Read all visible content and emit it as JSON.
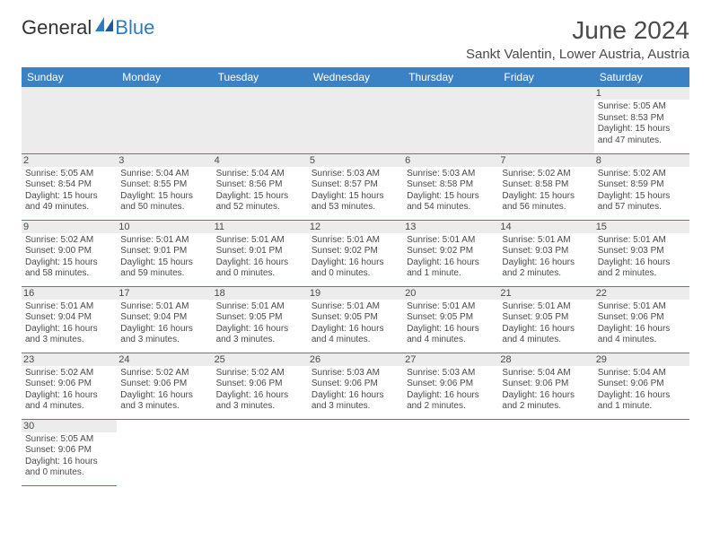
{
  "colors": {
    "header_bg": "#3b82c4",
    "header_text": "#ffffff",
    "daynum_bg": "#ececec",
    "body_text": "#4a4a4a",
    "divider": "#3b82c4",
    "logo_blue": "#2e7cc0"
  },
  "typography": {
    "title_fontsize": 28,
    "location_fontsize": 15,
    "dayheader_fontsize": 12,
    "cell_fontsize": 10,
    "daynum_fontsize": 11
  },
  "logo": {
    "part1": "General",
    "part2": "Blue"
  },
  "title": "June 2024",
  "location": "Sankt Valentin, Lower Austria, Austria",
  "day_headers": [
    "Sunday",
    "Monday",
    "Tuesday",
    "Wednesday",
    "Thursday",
    "Friday",
    "Saturday"
  ],
  "weeks": [
    [
      null,
      null,
      null,
      null,
      null,
      null,
      {
        "num": "1",
        "sunrise": "Sunrise: 5:05 AM",
        "sunset": "Sunset: 8:53 PM",
        "daylight1": "Daylight: 15 hours",
        "daylight2": "and 47 minutes."
      }
    ],
    [
      {
        "num": "2",
        "sunrise": "Sunrise: 5:05 AM",
        "sunset": "Sunset: 8:54 PM",
        "daylight1": "Daylight: 15 hours",
        "daylight2": "and 49 minutes."
      },
      {
        "num": "3",
        "sunrise": "Sunrise: 5:04 AM",
        "sunset": "Sunset: 8:55 PM",
        "daylight1": "Daylight: 15 hours",
        "daylight2": "and 50 minutes."
      },
      {
        "num": "4",
        "sunrise": "Sunrise: 5:04 AM",
        "sunset": "Sunset: 8:56 PM",
        "daylight1": "Daylight: 15 hours",
        "daylight2": "and 52 minutes."
      },
      {
        "num": "5",
        "sunrise": "Sunrise: 5:03 AM",
        "sunset": "Sunset: 8:57 PM",
        "daylight1": "Daylight: 15 hours",
        "daylight2": "and 53 minutes."
      },
      {
        "num": "6",
        "sunrise": "Sunrise: 5:03 AM",
        "sunset": "Sunset: 8:58 PM",
        "daylight1": "Daylight: 15 hours",
        "daylight2": "and 54 minutes."
      },
      {
        "num": "7",
        "sunrise": "Sunrise: 5:02 AM",
        "sunset": "Sunset: 8:58 PM",
        "daylight1": "Daylight: 15 hours",
        "daylight2": "and 56 minutes."
      },
      {
        "num": "8",
        "sunrise": "Sunrise: 5:02 AM",
        "sunset": "Sunset: 8:59 PM",
        "daylight1": "Daylight: 15 hours",
        "daylight2": "and 57 minutes."
      }
    ],
    [
      {
        "num": "9",
        "sunrise": "Sunrise: 5:02 AM",
        "sunset": "Sunset: 9:00 PM",
        "daylight1": "Daylight: 15 hours",
        "daylight2": "and 58 minutes."
      },
      {
        "num": "10",
        "sunrise": "Sunrise: 5:01 AM",
        "sunset": "Sunset: 9:01 PM",
        "daylight1": "Daylight: 15 hours",
        "daylight2": "and 59 minutes."
      },
      {
        "num": "11",
        "sunrise": "Sunrise: 5:01 AM",
        "sunset": "Sunset: 9:01 PM",
        "daylight1": "Daylight: 16 hours",
        "daylight2": "and 0 minutes."
      },
      {
        "num": "12",
        "sunrise": "Sunrise: 5:01 AM",
        "sunset": "Sunset: 9:02 PM",
        "daylight1": "Daylight: 16 hours",
        "daylight2": "and 0 minutes."
      },
      {
        "num": "13",
        "sunrise": "Sunrise: 5:01 AM",
        "sunset": "Sunset: 9:02 PM",
        "daylight1": "Daylight: 16 hours",
        "daylight2": "and 1 minute."
      },
      {
        "num": "14",
        "sunrise": "Sunrise: 5:01 AM",
        "sunset": "Sunset: 9:03 PM",
        "daylight1": "Daylight: 16 hours",
        "daylight2": "and 2 minutes."
      },
      {
        "num": "15",
        "sunrise": "Sunrise: 5:01 AM",
        "sunset": "Sunset: 9:03 PM",
        "daylight1": "Daylight: 16 hours",
        "daylight2": "and 2 minutes."
      }
    ],
    [
      {
        "num": "16",
        "sunrise": "Sunrise: 5:01 AM",
        "sunset": "Sunset: 9:04 PM",
        "daylight1": "Daylight: 16 hours",
        "daylight2": "and 3 minutes."
      },
      {
        "num": "17",
        "sunrise": "Sunrise: 5:01 AM",
        "sunset": "Sunset: 9:04 PM",
        "daylight1": "Daylight: 16 hours",
        "daylight2": "and 3 minutes."
      },
      {
        "num": "18",
        "sunrise": "Sunrise: 5:01 AM",
        "sunset": "Sunset: 9:05 PM",
        "daylight1": "Daylight: 16 hours",
        "daylight2": "and 3 minutes."
      },
      {
        "num": "19",
        "sunrise": "Sunrise: 5:01 AM",
        "sunset": "Sunset: 9:05 PM",
        "daylight1": "Daylight: 16 hours",
        "daylight2": "and 4 minutes."
      },
      {
        "num": "20",
        "sunrise": "Sunrise: 5:01 AM",
        "sunset": "Sunset: 9:05 PM",
        "daylight1": "Daylight: 16 hours",
        "daylight2": "and 4 minutes."
      },
      {
        "num": "21",
        "sunrise": "Sunrise: 5:01 AM",
        "sunset": "Sunset: 9:05 PM",
        "daylight1": "Daylight: 16 hours",
        "daylight2": "and 4 minutes."
      },
      {
        "num": "22",
        "sunrise": "Sunrise: 5:01 AM",
        "sunset": "Sunset: 9:06 PM",
        "daylight1": "Daylight: 16 hours",
        "daylight2": "and 4 minutes."
      }
    ],
    [
      {
        "num": "23",
        "sunrise": "Sunrise: 5:02 AM",
        "sunset": "Sunset: 9:06 PM",
        "daylight1": "Daylight: 16 hours",
        "daylight2": "and 4 minutes."
      },
      {
        "num": "24",
        "sunrise": "Sunrise: 5:02 AM",
        "sunset": "Sunset: 9:06 PM",
        "daylight1": "Daylight: 16 hours",
        "daylight2": "and 3 minutes."
      },
      {
        "num": "25",
        "sunrise": "Sunrise: 5:02 AM",
        "sunset": "Sunset: 9:06 PM",
        "daylight1": "Daylight: 16 hours",
        "daylight2": "and 3 minutes."
      },
      {
        "num": "26",
        "sunrise": "Sunrise: 5:03 AM",
        "sunset": "Sunset: 9:06 PM",
        "daylight1": "Daylight: 16 hours",
        "daylight2": "and 3 minutes."
      },
      {
        "num": "27",
        "sunrise": "Sunrise: 5:03 AM",
        "sunset": "Sunset: 9:06 PM",
        "daylight1": "Daylight: 16 hours",
        "daylight2": "and 2 minutes."
      },
      {
        "num": "28",
        "sunrise": "Sunrise: 5:04 AM",
        "sunset": "Sunset: 9:06 PM",
        "daylight1": "Daylight: 16 hours",
        "daylight2": "and 2 minutes."
      },
      {
        "num": "29",
        "sunrise": "Sunrise: 5:04 AM",
        "sunset": "Sunset: 9:06 PM",
        "daylight1": "Daylight: 16 hours",
        "daylight2": "and 1 minute."
      }
    ],
    [
      {
        "num": "30",
        "sunrise": "Sunrise: 5:05 AM",
        "sunset": "Sunset: 9:06 PM",
        "daylight1": "Daylight: 16 hours",
        "daylight2": "and 0 minutes."
      },
      null,
      null,
      null,
      null,
      null,
      null
    ]
  ]
}
